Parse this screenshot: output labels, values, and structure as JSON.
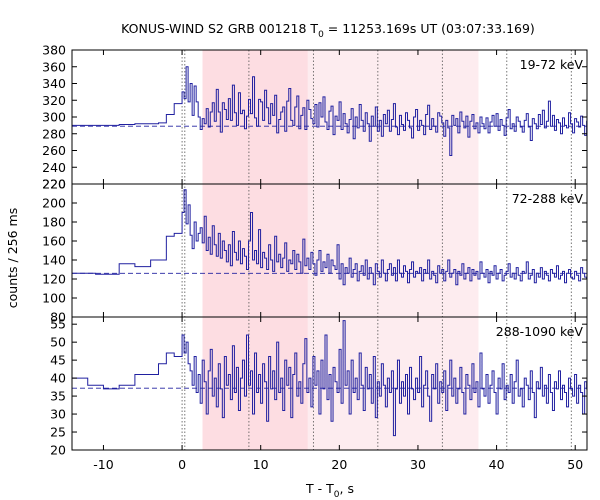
{
  "chart_data": {
    "type": "line",
    "title": "KONUS-WIND S2 GRB 001218 T",
    "title_sub": "0",
    "title_rest": " = 11253.169s UT (03:07:33.169)",
    "xlabel": "T - T",
    "xlabel_sub": "0",
    "xlabel_rest": ", s",
    "ylabel": "counts / 256 ms",
    "xlim": [
      -14,
      51.5
    ],
    "x_ticks": [
      -10,
      0,
      10,
      20,
      30,
      40,
      50
    ],
    "x_tick_labels": [
      "-10",
      "0",
      "10",
      "20",
      "30",
      "40",
      "50"
    ],
    "dark_band": [
      2.6,
      16.0
    ],
    "light_band": [
      16.0,
      37.7
    ],
    "vertical_markers": [
      0.0,
      0.35,
      8.5,
      16.7,
      24.9,
      33.1,
      41.3,
      49.5
    ],
    "line_color": "#2020a0",
    "dark_band_color": "#fddde2",
    "light_band_color": "#fdecef",
    "panels": [
      {
        "label": "19-72 keV",
        "ylim": [
          220,
          380
        ],
        "y_ticks": [
          220,
          240,
          260,
          280,
          300,
          320,
          340,
          360,
          380
        ],
        "y_tick_labels": [
          "220",
          "240",
          "260",
          "280",
          "300",
          "320",
          "340",
          "360",
          "380"
        ],
        "background": 289,
        "pre_steps": [
          [
            -14,
            290
          ],
          [
            -8,
            291
          ],
          [
            -6,
            292
          ],
          [
            -3,
            293
          ],
          [
            -2,
            303
          ],
          [
            -1,
            316
          ]
        ],
        "t_start": 0.0,
        "step": 0.256,
        "values": [
          330,
          322,
          360,
          318,
          340,
          302,
          337,
          318,
          300,
          285,
          298,
          292,
          310,
          288,
          306,
          317,
          295,
          333,
          306,
          282,
          317,
          309,
          297,
          322,
          296,
          338,
          305,
          290,
          329,
          304,
          308,
          286,
          301,
          321,
          304,
          348,
          299,
          289,
          321,
          318,
          296,
          332,
          311,
          292,
          316,
          302,
          326,
          281,
          297,
          306,
          312,
          283,
          319,
          334,
          296,
          290,
          312,
          325,
          286,
          302,
          311,
          285,
          320,
          309,
          298,
          292,
          315,
          288,
          317,
          300,
          324,
          294,
          285,
          307,
          313,
          279,
          301,
          296,
          318,
          285,
          304,
          292,
          281,
          297,
          310,
          274,
          300,
          287,
          315,
          296,
          283,
          305,
          292,
          271,
          301,
          289,
          312,
          283,
          296,
          277,
          303,
          292,
          308,
          283,
          297,
          316,
          288,
          279,
          302,
          291,
          284,
          305,
          296,
          287,
          275,
          300,
          309,
          284,
          296,
          290,
          279,
          303,
          314,
          285,
          298,
          289,
          282,
          305,
          301,
          293,
          277,
          296,
          287,
          254,
          302,
          290,
          298,
          281,
          306,
          295,
          287,
          301,
          276,
          295,
          303,
          286,
          293,
          281,
          300,
          292,
          286,
          299,
          281,
          294,
          302,
          289,
          304,
          284,
          297,
          290,
          278,
          299,
          309,
          286,
          292,
          283,
          300,
          295,
          288,
          282,
          296,
          304,
          288,
          272,
          298,
          292,
          286,
          303,
          291,
          308,
          287,
          295,
          319,
          289,
          302,
          284,
          297,
          293,
          280,
          299,
          290,
          287,
          305,
          292,
          281,
          298,
          294,
          288,
          301,
          290,
          278,
          295,
          286,
          293,
          299,
          285,
          291,
          287,
          302,
          293,
          282,
          298,
          290,
          285,
          304,
          289,
          296,
          284,
          300,
          291,
          279,
          294,
          288,
          296,
          283,
          299,
          291,
          286,
          280,
          292,
          298
        ]
      },
      {
        "label": "72-288 keV",
        "ylim": [
          80,
          220
        ],
        "y_ticks": [
          80,
          100,
          120,
          140,
          160,
          180,
          200,
          220
        ],
        "y_tick_labels": [
          "80",
          "100",
          "120",
          "140",
          "160",
          "180",
          "200",
          "220"
        ],
        "background": 126,
        "pre_steps": [
          [
            -14,
            126
          ],
          [
            -11,
            125
          ],
          [
            -8,
            136
          ],
          [
            -6,
            133
          ],
          [
            -4,
            140
          ],
          [
            -3,
            140
          ],
          [
            -2,
            165
          ],
          [
            -1,
            168
          ]
        ],
        "t_start": 0.0,
        "step": 0.256,
        "values": [
          190,
          214,
          178,
          198,
          166,
          152,
          180,
          160,
          168,
          174,
          158,
          186,
          150,
          164,
          146,
          176,
          156,
          144,
          168,
          142,
          160,
          150,
          138,
          156,
          134,
          170,
          148,
          140,
          160,
          136,
          152,
          144,
          130,
          160,
          190,
          140,
          150,
          136,
          172,
          132,
          148,
          142,
          130,
          156,
          140,
          128,
          165,
          138,
          146,
          132,
          142,
          158,
          128,
          140,
          136,
          150,
          130,
          146,
          138,
          126,
          162,
          134,
          142,
          130,
          148,
          136,
          124,
          140,
          150,
          128,
          138,
          132,
          146,
          126,
          140,
          134,
          130,
          156,
          120,
          136,
          114,
          132,
          126,
          142,
          122,
          130,
          136,
          118,
          128,
          134,
          124,
          140,
          120,
          132,
          126,
          114,
          136,
          128,
          122,
          140,
          126,
          118,
          130,
          136,
          124,
          132,
          118,
          140,
          126,
          122,
          134,
          128,
          116,
          130,
          138,
          122,
          128,
          126,
          132,
          118,
          130,
          126,
          140,
          120,
          128,
          124,
          116,
          134,
          126,
          130,
          118,
          128,
          140,
          122,
          126,
          130,
          114,
          128,
          124,
          136,
          120,
          126,
          132,
          118,
          130,
          124,
          128,
          120,
          138,
          126,
          122,
          130,
          116,
          128,
          124,
          134,
          120,
          126,
          130,
          118,
          124,
          128,
          136,
          122,
          126,
          120,
          132,
          124,
          118,
          128,
          126,
          138,
          120,
          124,
          130,
          116,
          126,
          122,
          132,
          120,
          128,
          124,
          118,
          130,
          126,
          122,
          134,
          120,
          124,
          128,
          116,
          126,
          130,
          122,
          120,
          128,
          124,
          118,
          132,
          126,
          122,
          120,
          128,
          124,
          112,
          130,
          126,
          120,
          124,
          128,
          118,
          122,
          130,
          126,
          120,
          124,
          116,
          128,
          122,
          126,
          120,
          130,
          124,
          118,
          122,
          126,
          128,
          120,
          124,
          118,
          126
        ]
      },
      {
        "label": "288-1090 keV",
        "ylim": [
          20,
          57
        ],
        "y_ticks": [
          20,
          25,
          30,
          35,
          40,
          45,
          50,
          55
        ],
        "y_tick_labels": [
          "20",
          "25",
          "30",
          "35",
          "40",
          "45",
          "50",
          "55"
        ],
        "background": 37.2,
        "pre_steps": [
          [
            -14,
            40
          ],
          [
            -12,
            38
          ],
          [
            -10,
            37
          ],
          [
            -8,
            38
          ],
          [
            -6,
            41
          ],
          [
            -3,
            44
          ],
          [
            -2,
            47
          ],
          [
            -1,
            46
          ]
        ],
        "t_start": 0.0,
        "step": 0.256,
        "values": [
          52,
          47,
          50,
          44,
          42,
          38,
          46,
          36,
          41,
          33,
          45,
          39,
          30,
          42,
          48,
          35,
          40,
          32,
          44,
          37,
          29,
          46,
          38,
          41,
          34,
          49,
          36,
          43,
          31,
          40,
          45,
          35,
          52,
          38,
          42,
          30,
          47,
          36,
          41,
          33,
          44,
          39,
          28,
          46,
          37,
          42,
          34,
          50,
          36,
          40,
          31,
          45,
          38,
          43,
          29,
          41,
          47,
          35,
          39,
          33,
          44,
          51,
          36,
          40,
          32,
          46,
          38,
          42,
          30,
          45,
          37,
          52,
          34,
          41,
          28,
          43,
          39,
          36,
          48,
          33,
          56,
          38,
          42,
          30,
          45,
          36,
          40,
          34,
          47,
          38,
          31,
          43,
          37,
          41,
          33,
          46,
          29,
          39,
          35,
          44,
          38,
          32,
          40,
          36,
          42,
          24,
          37,
          45,
          33,
          39,
          35,
          41,
          30,
          43,
          37,
          34,
          40,
          36,
          46,
          32,
          38,
          42,
          35,
          28,
          41,
          37,
          44,
          33,
          39,
          36,
          42,
          31,
          38,
          45,
          35,
          40,
          33,
          37,
          43,
          36,
          30,
          41,
          38,
          34,
          44,
          36,
          39,
          32,
          47,
          37,
          35,
          41,
          33,
          38,
          42,
          36,
          30,
          40,
          37,
          44,
          34,
          38,
          36,
          41,
          33,
          39,
          45,
          35,
          37,
          32,
          40,
          38,
          34,
          42,
          36,
          29,
          39,
          37,
          43,
          35,
          38,
          33,
          41,
          36,
          31,
          39,
          37,
          42,
          34,
          38,
          36,
          32,
          40,
          37,
          35,
          41,
          33,
          38,
          36,
          30,
          39,
          37,
          42,
          34,
          38,
          35,
          40,
          36,
          33,
          39,
          37,
          31,
          41,
          36,
          38,
          34,
          40,
          37,
          35,
          39,
          33,
          42,
          36,
          38,
          34,
          37,
          40,
          35,
          39,
          36,
          33,
          38,
          37,
          31,
          40,
          36
        ]
      }
    ]
  }
}
